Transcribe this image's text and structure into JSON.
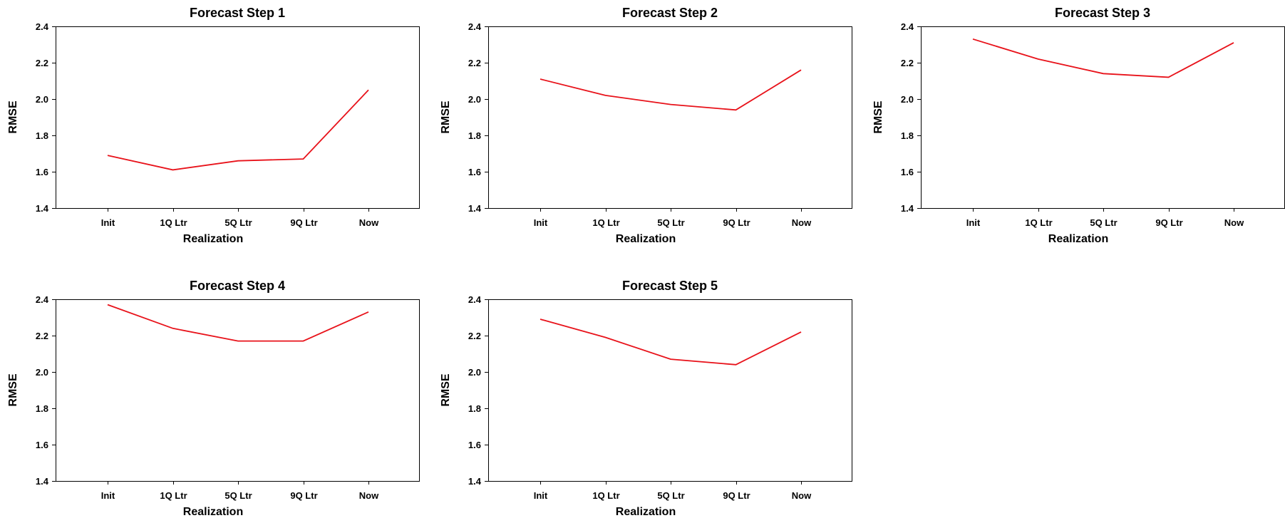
{
  "chart_data": [
    {
      "type": "line",
      "title": "Forecast Step 1",
      "xlabel": "Realization",
      "ylabel": "RMSE",
      "categories": [
        "Init",
        "1Q Ltr",
        "5Q Ltr",
        "9Q Ltr",
        "Now"
      ],
      "ylim": [
        1.4,
        2.4
      ],
      "yticks": [
        "1.4",
        "1.6",
        "1.8",
        "2.0",
        "2.2",
        "2.4"
      ],
      "grid": false,
      "series": [
        {
          "values": [
            1.69,
            1.61,
            1.66,
            1.67,
            2.05
          ],
          "color": "#e8121a"
        }
      ]
    },
    {
      "type": "line",
      "title": "Forecast Step 2",
      "xlabel": "Realization",
      "ylabel": "RMSE",
      "categories": [
        "Init",
        "1Q Ltr",
        "5Q Ltr",
        "9Q Ltr",
        "Now"
      ],
      "ylim": [
        1.4,
        2.4
      ],
      "yticks": [
        "1.4",
        "1.6",
        "1.8",
        "2.0",
        "2.2",
        "2.4"
      ],
      "grid": false,
      "series": [
        {
          "values": [
            2.11,
            2.02,
            1.97,
            1.94,
            2.16
          ],
          "color": "#e8121a"
        }
      ]
    },
    {
      "type": "line",
      "title": "Forecast Step 3",
      "xlabel": "Realization",
      "ylabel": "RMSE",
      "categories": [
        "Init",
        "1Q Ltr",
        "5Q Ltr",
        "9Q Ltr",
        "Now"
      ],
      "ylim": [
        1.4,
        2.4
      ],
      "yticks": [
        "1.4",
        "1.6",
        "1.8",
        "2.0",
        "2.2",
        "2.4"
      ],
      "grid": false,
      "series": [
        {
          "values": [
            2.33,
            2.22,
            2.14,
            2.12,
            2.31
          ],
          "color": "#e8121a"
        }
      ]
    },
    {
      "type": "line",
      "title": "Forecast Step 4",
      "xlabel": "Realization",
      "ylabel": "RMSE",
      "categories": [
        "Init",
        "1Q Ltr",
        "5Q Ltr",
        "9Q Ltr",
        "Now"
      ],
      "ylim": [
        1.4,
        2.4
      ],
      "yticks": [
        "1.4",
        "1.6",
        "1.8",
        "2.0",
        "2.2",
        "2.4"
      ],
      "grid": false,
      "series": [
        {
          "values": [
            2.37,
            2.24,
            2.17,
            2.17,
            2.33
          ],
          "color": "#e8121a"
        }
      ]
    },
    {
      "type": "line",
      "title": "Forecast Step 5",
      "xlabel": "Realization",
      "ylabel": "RMSE",
      "categories": [
        "Init",
        "1Q Ltr",
        "5Q Ltr",
        "9Q Ltr",
        "Now"
      ],
      "ylim": [
        1.4,
        2.4
      ],
      "yticks": [
        "1.4",
        "1.6",
        "1.8",
        "2.0",
        "2.2",
        "2.4"
      ],
      "grid": false,
      "series": [
        {
          "values": [
            2.29,
            2.19,
            2.07,
            2.04,
            2.22
          ],
          "color": "#e8121a"
        }
      ]
    }
  ]
}
